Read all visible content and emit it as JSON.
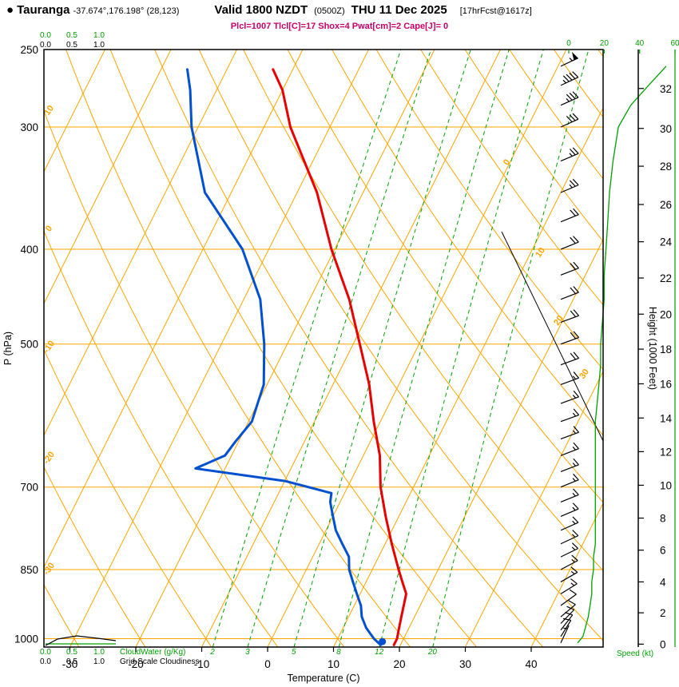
{
  "header": {
    "bullet": "●",
    "station": "Tauranga",
    "coords": "-37.674°,176.198° (28,123)",
    "valid_time": "Valid 1800 NZDT",
    "valid_utc": "(0500Z)",
    "valid_date": "THU 11 Dec 2025",
    "forecast_info": "[17hrFcst@1617z]",
    "params": "Plcl=1007 Tlcl[C]=17 Shox=4 Pwat[cm]=2 Cape[J]= 0"
  },
  "colors": {
    "grid_orange": "#FFA500",
    "green": "#00A000",
    "temperature_red": "#E60000",
    "dewpoint_blue": "#0050D0",
    "params_magenta": "#C80068",
    "black": "#000000"
  },
  "axes": {
    "pressure_label": "P (hPa)",
    "temperature_label": "Temperature (C)",
    "height_label": "Height (1000 Feet)",
    "speed_label": "Speed (kt)",
    "cloudwater_label": "CloudWater (g/Kg)",
    "cloudiness_label": "Grid-Scale Cloudiness",
    "cloud_scale_labels": [
      "0.0",
      "0.5",
      "1.0"
    ]
  },
  "grid": {
    "isotherm_right_labels": [
      "0",
      "10",
      "20",
      "30"
    ],
    "adiabat_left_labels": [
      "10",
      "0",
      "-10",
      "-20",
      "-30"
    ],
    "mixing_ratio_labels": [
      "2",
      "3",
      "5",
      "8",
      "12",
      "20"
    ]
  },
  "chart_data": {
    "type": "skewt-log-p-sounding",
    "title": "Tauranga sounding valid 1800 NZDT (0500Z) THU 11 Dec 2025, 17hr forecast from 1617z",
    "pressure_axis_hpa": [
      250,
      300,
      400,
      500,
      700,
      850,
      1000
    ],
    "pressure_axis_range_hpa": [
      250,
      1020
    ],
    "temp_axis_c": [
      -30,
      -20,
      -10,
      0,
      10,
      20,
      30,
      40
    ],
    "height_axis_kft": [
      0,
      2,
      4,
      6,
      8,
      10,
      12,
      14,
      16,
      18,
      20,
      22,
      24,
      26,
      28,
      30,
      32
    ],
    "speed_axis_kt": [
      0,
      20,
      40,
      60
    ],
    "mixing_ratio_g_kg": [
      2,
      3,
      5,
      8,
      12,
      20
    ],
    "grid_config": {
      "isotherm_step_c": 10,
      "dry_adiabat_step_c": 10,
      "legend_position": "bottom-left",
      "grid": "on"
    },
    "parcel": {
      "plcl_hpa": 1007,
      "tlcl_c": 17,
      "shox": 4,
      "pwat_cm": 2,
      "cape_j": 0
    },
    "temperature_profile": {
      "pressure_hpa": [
        1015,
        1000,
        975,
        950,
        925,
        900,
        875,
        850,
        800,
        750,
        700,
        650,
        600,
        550,
        500,
        450,
        400,
        350,
        300,
        275,
        262
      ],
      "temp_c": [
        19,
        19,
        18.5,
        18,
        17.5,
        17,
        15.5,
        14,
        11,
        8,
        5,
        2.5,
        -1,
        -4.5,
        -9,
        -14,
        -20.5,
        -27,
        -36,
        -40,
        -43
      ]
    },
    "dewpoint_profile": {
      "pressure_hpa": [
        1015,
        1000,
        975,
        950,
        925,
        900,
        875,
        850,
        825,
        800,
        775,
        750,
        725,
        710,
        690,
        670,
        650,
        630,
        600,
        575,
        550,
        500,
        450,
        400,
        350,
        300,
        275,
        262
      ],
      "dewpoint_c": [
        17,
        15.5,
        13.5,
        12,
        11,
        9.5,
        8,
        6.5,
        5.5,
        3.5,
        1.5,
        0,
        -1.5,
        -2,
        -10,
        -24.5,
        -21,
        -20.5,
        -19.5,
        -20,
        -20.5,
        -23.5,
        -27.5,
        -34,
        -44,
        -51,
        -54,
        -56
      ]
    },
    "wind_profile": {
      "pressure_hpa": [
        1010,
        995,
        980,
        965,
        950,
        925,
        900,
        875,
        850,
        825,
        800,
        775,
        750,
        725,
        700,
        675,
        650,
        625,
        600,
        575,
        550,
        525,
        500,
        475,
        450,
        425,
        400,
        375,
        350,
        325,
        300,
        285,
        272,
        260
      ],
      "dir_deg": [
        205,
        212,
        218,
        224,
        230,
        234,
        238,
        240,
        242,
        244,
        245,
        246,
        247,
        248,
        248,
        249,
        249,
        250,
        250,
        250,
        250,
        250,
        250,
        250,
        249,
        249,
        248,
        248,
        247,
        247,
        246,
        246,
        245,
        245
      ],
      "speed_kt": [
        5,
        8,
        9,
        10,
        11,
        12,
        13,
        13,
        14,
        14,
        15,
        15,
        15,
        15,
        15,
        15,
        15,
        15,
        15,
        16,
        17,
        18,
        18,
        19,
        20,
        20,
        21,
        22,
        23,
        25,
        28,
        35,
        45,
        55
      ]
    },
    "cloudwater_profile": {
      "scale": [
        0,
        0.5,
        1.0
      ],
      "max_value": 0,
      "units": "g/Kg"
    },
    "cloudiness_profile": {
      "scale": [
        0,
        0.5,
        1.0
      ],
      "max_value": 0.15,
      "units": "fraction"
    }
  }
}
